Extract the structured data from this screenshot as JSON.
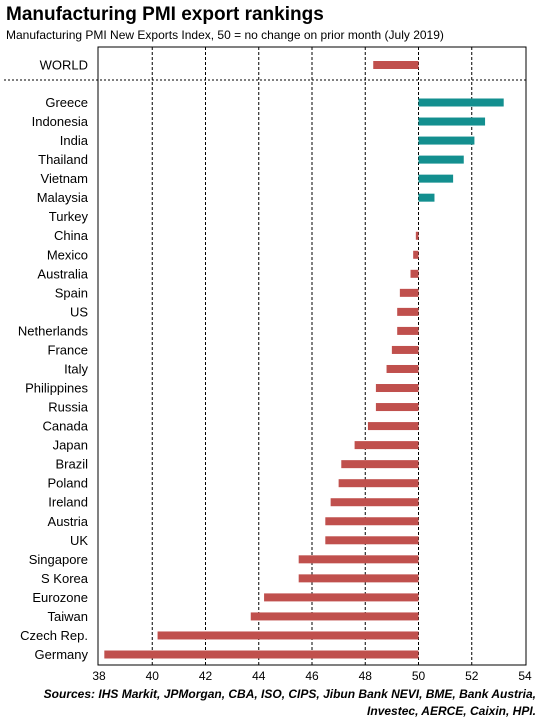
{
  "title": "Manufacturing PMI export rankings",
  "subtitle": "Manufacturing PMI New Exports Index, 50 = no change on prior month  (July 2019)",
  "source": "Sources: IHS Markit, JPMorgan, CBA, ISO, CIPS, Jibun Bank NEVI, BME, Bank Austria, Investec, AERCE, Caixin, HPI.",
  "colors": {
    "positive": "#138f8f",
    "negative": "#c0504d"
  },
  "chart_data": {
    "type": "bar",
    "orientation": "horizontal",
    "baseline": 50,
    "xlim": [
      38,
      54
    ],
    "xticks": [
      "38",
      "40",
      "42",
      "44",
      "46",
      "48",
      "50",
      "52",
      "54"
    ],
    "xtick_values": [
      38,
      40,
      42,
      44,
      46,
      48,
      50,
      52,
      54
    ],
    "grid": true,
    "headline": {
      "category": "WORLD",
      "value": 48.3
    },
    "categories": [
      "Greece",
      "Indonesia",
      "India",
      "Thailand",
      "Vietnam",
      "Malaysia",
      "Turkey",
      "China",
      "Mexico",
      "Australia",
      "Spain",
      "US",
      "Netherlands",
      "France",
      "Italy",
      "Philippines",
      "Russia",
      "Canada",
      "Japan",
      "Brazil",
      "Poland",
      "Ireland",
      "Austria",
      "UK",
      "Singapore",
      "S Korea",
      "Eurozone",
      "Taiwan",
      "Czech Rep.",
      "Germany"
    ],
    "values": [
      53.2,
      52.5,
      52.1,
      51.7,
      51.3,
      50.6,
      50.0,
      49.9,
      49.8,
      49.7,
      49.3,
      49.2,
      49.2,
      49.0,
      48.8,
      48.4,
      48.4,
      48.1,
      47.6,
      47.1,
      47.0,
      46.7,
      46.5,
      46.5,
      45.5,
      45.5,
      44.2,
      43.7,
      40.2,
      38.2
    ]
  }
}
